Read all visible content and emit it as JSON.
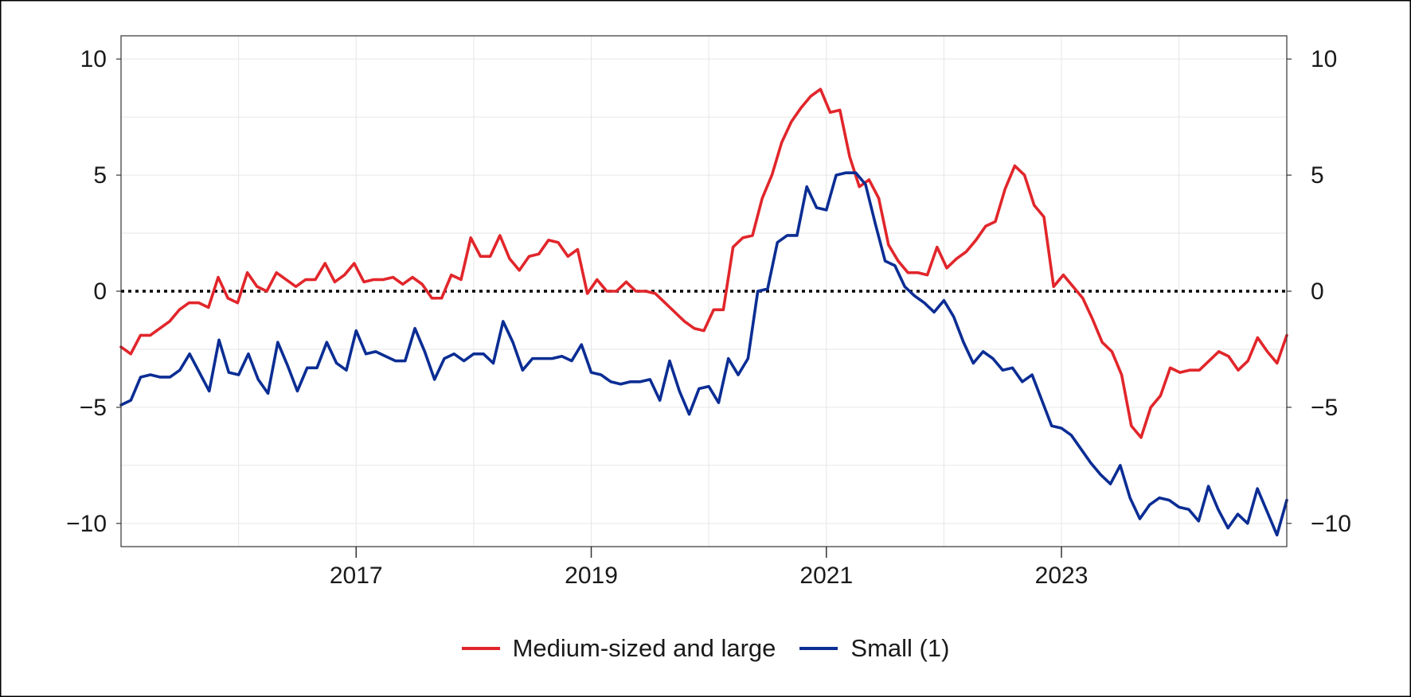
{
  "chart_data": {
    "type": "line",
    "title": "",
    "xlabel": "",
    "ylabel": "",
    "x_start": "2015-01",
    "x_end": "2024-12",
    "x_ticks": [
      "2017",
      "2019",
      "2021",
      "2023"
    ],
    "ylim": [
      -11,
      11
    ],
    "y_ticks": [
      10,
      5,
      0,
      -5,
      -10
    ],
    "y_tick_labels": [
      "10",
      "5",
      "0",
      "−5",
      "−10"
    ],
    "secondary_axis": true,
    "grid": true,
    "reference_line": 0,
    "legend_position": "bottom-center",
    "series": [
      {
        "name": "Medium-sized and large",
        "color": "#e1262b",
        "values": [
          -2.4,
          -2.7,
          -1.9,
          -1.9,
          -1.6,
          -1.3,
          -0.8,
          -0.5,
          -0.5,
          -0.7,
          0.6,
          -0.3,
          -0.5,
          0.8,
          0.2,
          0.0,
          0.8,
          0.5,
          0.2,
          0.5,
          0.5,
          1.2,
          0.4,
          0.7,
          1.2,
          0.4,
          0.5,
          0.5,
          0.6,
          0.3,
          0.6,
          0.3,
          -0.3,
          -0.3,
          0.7,
          0.5,
          2.3,
          1.5,
          1.5,
          2.4,
          1.4,
          0.9,
          1.5,
          1.6,
          2.2,
          2.1,
          1.5,
          1.8,
          -0.1,
          0.5,
          0.0,
          0.0,
          0.4,
          0.0,
          0.0,
          -0.1,
          -0.5,
          -0.9,
          -1.3,
          -1.6,
          -1.7,
          -0.8,
          -0.8,
          1.9,
          2.3,
          2.4,
          4.0,
          5.0,
          6.4,
          7.3,
          7.9,
          8.4,
          8.7,
          7.7,
          7.8,
          5.8,
          4.5,
          4.8,
          4.0,
          2.0,
          1.3,
          0.8,
          0.8,
          0.7,
          1.9,
          1.0,
          1.4,
          1.7,
          2.2,
          2.8,
          3.0,
          4.4,
          5.4,
          5.0,
          3.7,
          3.2,
          0.2,
          0.7,
          0.2,
          -0.3,
          -1.2,
          -2.2,
          -2.6,
          -3.6,
          -5.8,
          -6.3,
          -5.0,
          -4.5,
          -3.3,
          -3.5,
          -3.4,
          -3.4,
          -3.0,
          -2.6,
          -2.8,
          -3.4,
          -3.0,
          -2.0,
          -2.6,
          -3.1,
          -1.9
        ]
      },
      {
        "name": "Small (1)",
        "color": "#0b2d94",
        "values": [
          -4.9,
          -4.7,
          -3.7,
          -3.6,
          -3.7,
          -3.7,
          -3.4,
          -2.7,
          -3.5,
          -4.3,
          -2.1,
          -3.5,
          -3.6,
          -2.7,
          -3.8,
          -4.4,
          -2.2,
          -3.2,
          -4.3,
          -3.3,
          -3.3,
          -2.2,
          -3.1,
          -3.4,
          -1.7,
          -2.7,
          -2.6,
          -2.8,
          -3.0,
          -3.0,
          -1.6,
          -2.6,
          -3.8,
          -2.9,
          -2.7,
          -3.0,
          -2.7,
          -2.7,
          -3.1,
          -1.3,
          -2.2,
          -3.4,
          -2.9,
          -2.9,
          -2.9,
          -2.8,
          -3.0,
          -2.3,
          -3.5,
          -3.6,
          -3.9,
          -4.0,
          -3.9,
          -3.9,
          -3.8,
          -4.7,
          -3.0,
          -4.3,
          -5.3,
          -4.2,
          -4.1,
          -4.8,
          -2.9,
          -3.6,
          -2.9,
          0.0,
          0.1,
          2.1,
          2.4,
          2.4,
          4.5,
          3.6,
          3.5,
          5.0,
          5.1,
          5.1,
          4.6,
          2.9,
          1.3,
          1.1,
          0.2,
          -0.2,
          -0.5,
          -0.9,
          -0.4,
          -1.1,
          -2.2,
          -3.1,
          -2.6,
          -2.9,
          -3.4,
          -3.3,
          -3.9,
          -3.6,
          -4.7,
          -5.8,
          -5.9,
          -6.2,
          -6.8,
          -7.4,
          -7.9,
          -8.3,
          -7.5,
          -8.9,
          -9.8,
          -9.2,
          -8.9,
          -9.0,
          -9.3,
          -9.4,
          -9.9,
          -8.4,
          -9.4,
          -10.2,
          -9.6,
          -10.0,
          -8.5,
          -9.5,
          -10.5,
          -9.0
        ]
      }
    ]
  }
}
